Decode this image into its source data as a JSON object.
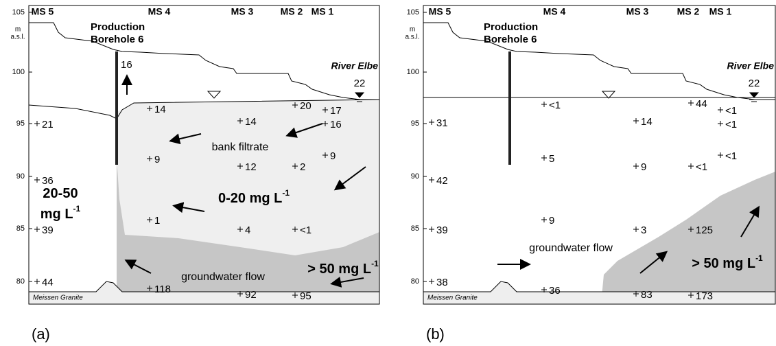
{
  "panels": [
    {
      "label": "(a)",
      "axis": {
        "unit": [
          "m",
          "a.s.l."
        ],
        "ticks": [
          "105",
          "100",
          "95",
          "90",
          "85",
          "80"
        ]
      },
      "wells": [
        "MS 5",
        "MS 4",
        "MS 3",
        "MS 2",
        "MS 1"
      ],
      "borehole": [
        "Production",
        "Borehole 6"
      ],
      "river": {
        "name": "River Elbe",
        "value": "22"
      },
      "borehole_value": "16",
      "points": [
        "21",
        "36",
        "39",
        "44",
        "14",
        "9",
        "1",
        "118",
        "14",
        "12",
        "4",
        "92",
        "20",
        "2",
        "<1",
        "95",
        "17",
        "16",
        "9"
      ],
      "texts": [
        "bank filtrate",
        "groundwater flow",
        "Meissen Granite"
      ],
      "zones": [
        {
          "lines": [
            "0-20 mg L"
          ],
          "sup": "-1"
        },
        {
          "lines": [
            "20-50",
            "mg L"
          ],
          "sup": "-1"
        },
        {
          "lines": [
            "> 50 mg L"
          ],
          "sup": "-1"
        }
      ]
    },
    {
      "label": "(b)",
      "axis": {
        "unit": [
          "m",
          "a.s.l."
        ],
        "ticks": [
          "105",
          "100",
          "95",
          "90",
          "85",
          "80"
        ]
      },
      "wells": [
        "MS 5",
        "MS 4",
        "MS 3",
        "MS 2",
        "MS 1"
      ],
      "borehole": [
        "Production",
        "Borehole 6"
      ],
      "river": {
        "name": "River Elbe",
        "value": "22"
      },
      "points": [
        "31",
        "42",
        "39",
        "38",
        "<1",
        "5",
        "9",
        "36",
        "14",
        "9",
        "3",
        "83",
        "44",
        "<1",
        "125",
        "173",
        "<1",
        "<1",
        "<1"
      ],
      "texts": [
        "groundwater flow",
        "Meissen Granite"
      ],
      "zones": [
        {
          "lines": [
            "> 50 mg L"
          ],
          "sup": "-1"
        }
      ]
    }
  ]
}
